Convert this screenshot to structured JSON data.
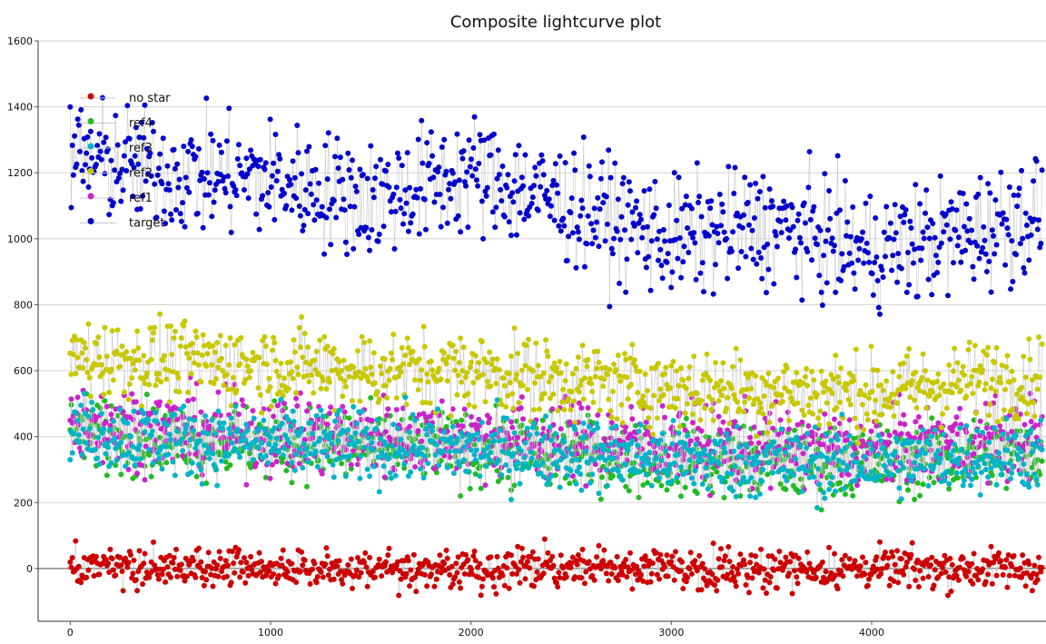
{
  "chart_data": {
    "type": "scatter",
    "title": "Composite lightcurve plot",
    "xlabel": "",
    "ylabel": "",
    "xlim": [
      -160,
      4870
    ],
    "ylim": [
      -160,
      1600
    ],
    "x_ticks": [
      0,
      1000,
      2000,
      3000,
      4000
    ],
    "y_ticks": [
      0,
      200,
      400,
      600,
      800,
      1000,
      1200,
      1400,
      1600
    ],
    "y_tick_labels": [
      "0",
      "200",
      "400",
      "600",
      "800",
      "1000",
      "1200",
      "1400",
      "1600"
    ],
    "x_tick_labels": [
      "0",
      "1000",
      "2000",
      "3000",
      "4000"
    ],
    "grid": true,
    "legend_position": "top-left",
    "series": [
      {
        "name": "no star",
        "color": "#cc0000",
        "x": [
          0,
          500,
          1000,
          1500,
          2000,
          2500,
          2560,
          2600,
          3000,
          3500,
          4000,
          4500,
          4850
        ],
        "y": [
          0,
          0,
          0,
          0,
          0,
          0,
          0,
          0,
          0,
          0,
          0,
          0,
          0
        ]
      },
      {
        "name": "ref4",
        "color": "#22bb22",
        "x": [
          0,
          500,
          1000,
          1500,
          2000,
          2500,
          3000,
          3500,
          4000,
          4500,
          4850
        ],
        "y": [
          420,
          390,
          380,
          370,
          360,
          350,
          330,
          320,
          320,
          340,
          350
        ]
      },
      {
        "name": "ref3",
        "color": "#00b4c8",
        "x": [
          0,
          500,
          1000,
          1500,
          2000,
          2500,
          3000,
          3500,
          4000,
          4500,
          4850
        ],
        "y": [
          420,
          390,
          380,
          370,
          360,
          350,
          330,
          320,
          320,
          340,
          350
        ]
      },
      {
        "name": "ref2",
        "color": "#c8c800",
        "x": [
          0,
          500,
          1000,
          1500,
          2000,
          2500,
          3000,
          3500,
          4000,
          4500,
          4850
        ],
        "y": [
          640,
          630,
          620,
          600,
          600,
          570,
          550,
          540,
          530,
          570,
          580
        ]
      },
      {
        "name": "ref1",
        "color": "#cc22cc",
        "x": [
          0,
          500,
          1000,
          1500,
          2000,
          2500,
          3000,
          3500,
          4000,
          4500,
          4850
        ],
        "y": [
          450,
          420,
          410,
          400,
          400,
          390,
          380,
          370,
          360,
          390,
          400
        ]
      },
      {
        "name": "target",
        "color": "#0000cc",
        "x": [
          0,
          500,
          1000,
          1500,
          2000,
          2500,
          3000,
          3500,
          4000,
          4500,
          4850
        ],
        "y": [
          1250,
          1200,
          1180,
          1120,
          1200,
          1100,
          1000,
          1040,
          960,
          1020,
          1080
        ]
      }
    ]
  }
}
